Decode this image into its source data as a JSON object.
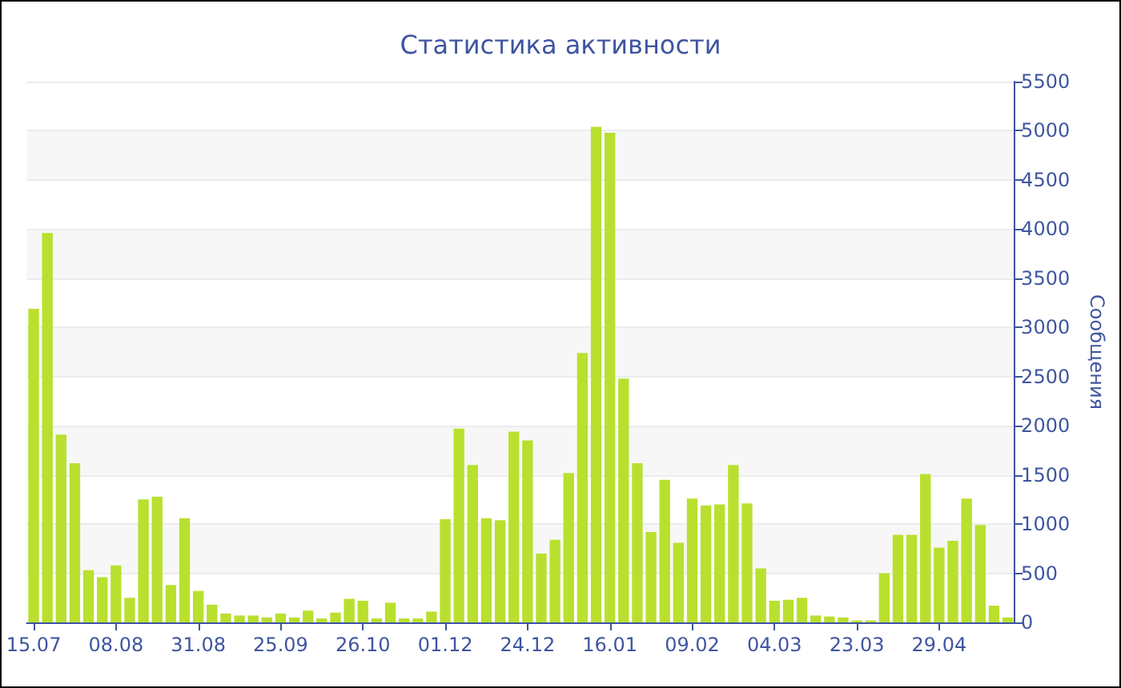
{
  "chart_data": {
    "type": "bar",
    "title": "Статистика активности",
    "ylabel": "Сообщения",
    "categories": [
      "15.07",
      null,
      null,
      null,
      null,
      null,
      "08.08",
      null,
      null,
      null,
      null,
      null,
      "31.08",
      null,
      null,
      null,
      null,
      null,
      "25.09",
      null,
      null,
      null,
      null,
      null,
      "26.10",
      null,
      null,
      null,
      null,
      null,
      "01.12",
      null,
      null,
      null,
      null,
      null,
      "24.12",
      null,
      null,
      null,
      null,
      null,
      "16.01",
      null,
      null,
      null,
      null,
      null,
      "09.02",
      null,
      null,
      null,
      null,
      null,
      "04.03",
      null,
      null,
      null,
      null,
      null,
      "23.03",
      null,
      null,
      null,
      null,
      null,
      "29.04",
      null,
      null,
      null,
      null,
      null
    ],
    "values": [
      3190,
      3960,
      1910,
      1620,
      530,
      460,
      580,
      250,
      1250,
      1280,
      380,
      1060,
      320,
      180,
      90,
      70,
      70,
      50,
      90,
      50,
      120,
      40,
      100,
      240,
      220,
      40,
      200,
      40,
      40,
      110,
      1050,
      1970,
      1600,
      1060,
      1040,
      1940,
      1850,
      700,
      840,
      1520,
      2740,
      5040,
      4980,
      2480,
      1620,
      920,
      1450,
      810,
      1260,
      1190,
      1200,
      1600,
      1210,
      550,
      220,
      230,
      250,
      70,
      60,
      50,
      20,
      20,
      500,
      890,
      890,
      1510,
      760,
      830,
      1260,
      990,
      170,
      50
    ],
    "color": "#b9e02e",
    "ylim": [
      0,
      5500
    ],
    "yticks": [
      0,
      500,
      1000,
      1500,
      2000,
      2500,
      3000,
      3500,
      4000,
      4500,
      5000,
      5500
    ],
    "grid": "y"
  }
}
